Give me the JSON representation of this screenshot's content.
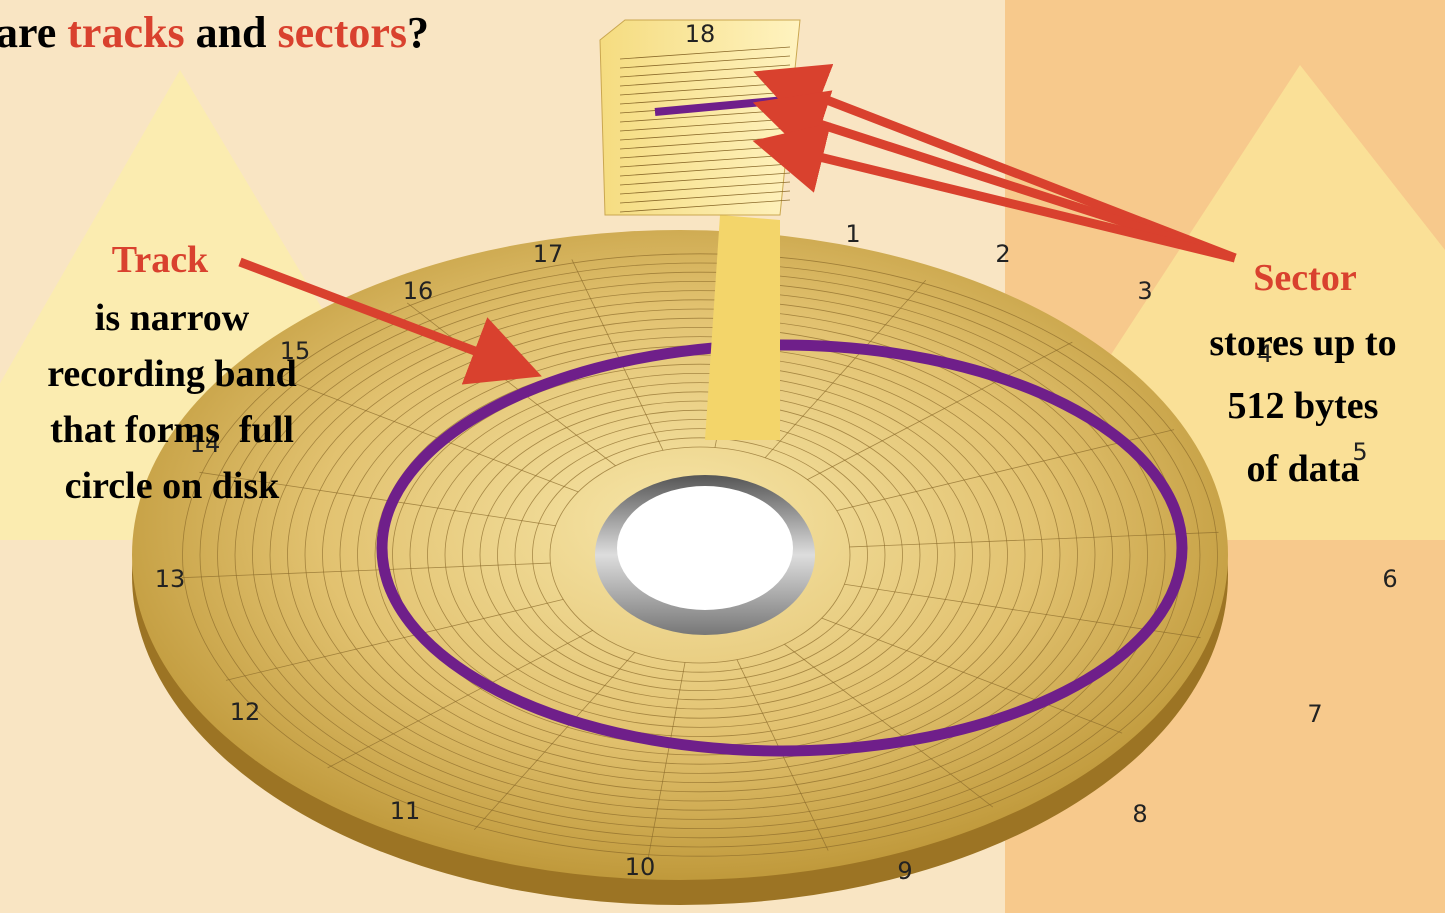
{
  "title": {
    "parts": [
      "are ",
      "tracks",
      " and ",
      "sectors",
      "?"
    ]
  },
  "track_callout": {
    "heading": "Track",
    "lines": [
      "is narrow",
      "recording band",
      "that forms  full",
      "circle on disk"
    ]
  },
  "sector_callout": {
    "heading": "Sector",
    "lines": [
      "stores up to",
      "512 bytes",
      "of data"
    ]
  },
  "sector_numbers": [
    "1",
    "2",
    "3",
    "4",
    "5",
    "6",
    "7",
    "8",
    "9",
    "10",
    "11",
    "12",
    "13",
    "14",
    "15",
    "16",
    "17",
    "18"
  ]
}
